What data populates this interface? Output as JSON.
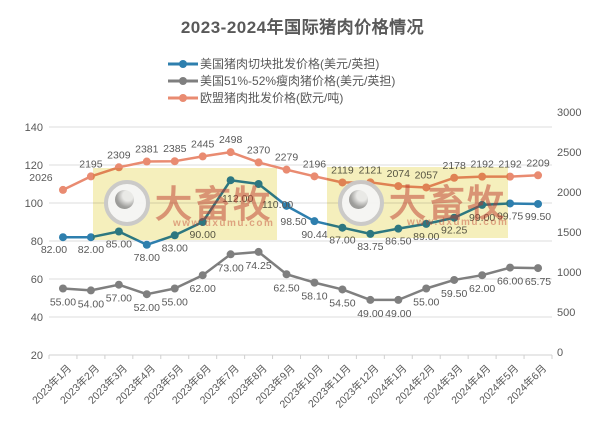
{
  "title": "2023-2024年国际猪肉价格情况",
  "legend": {
    "items": [
      {
        "label": "美国猪肉切块批发价格(美元/英担)",
        "color": "#2e7fae"
      },
      {
        "label": "美国51%-52%瘦肉猪价格(美元/英担)",
        "color": "#7f7f7f"
      },
      {
        "label": "欧盟猪肉批发价格(欧元/吨)",
        "color": "#e98b71"
      }
    ]
  },
  "watermark": {
    "brand": "大畜牧",
    "url": "www.dxumu.com"
  },
  "chart_data": {
    "type": "line",
    "title": "2023-2024年国际猪肉价格情况",
    "categories": [
      "2023年1月",
      "2023年2月",
      "2023年3月",
      "2023年4月",
      "2023年5月",
      "2023年6月",
      "2023年7月",
      "2023年8月",
      "2023年9月",
      "2023年10月",
      "2023年11月",
      "2023年12月",
      "2024年1月",
      "2024年2月",
      "2024年3月",
      "2024年4月",
      "2024年5月",
      "2024年6月"
    ],
    "series": [
      {
        "name": "美国猪肉切块批发价格(美元/英担)",
        "axis": "left",
        "color": "#2e7fae",
        "values": [
          82.0,
          82.0,
          85.0,
          78.0,
          83.0,
          90.0,
          112.0,
          110.0,
          98.5,
          90.44,
          87.0,
          83.75,
          86.5,
          89.0,
          92.25,
          99.0,
          99.75,
          99.5
        ],
        "labels": [
          "82.00",
          "82.00",
          "85.00",
          "78.00",
          "83.00",
          "90.00",
          "112.00",
          "110.00",
          "98.50",
          "90.44",
          "87.00",
          "83.75",
          "86.50",
          "89.00",
          "92.25",
          "99.00",
          "99.75",
          "99.50"
        ]
      },
      {
        "name": "美国51%-52%瘦肉猪价格(美元/英担)",
        "axis": "left",
        "color": "#7f7f7f",
        "values": [
          55.0,
          54.0,
          57.0,
          52.0,
          55.0,
          62.0,
          73.0,
          74.25,
          62.5,
          58.1,
          54.5,
          49.0,
          49.0,
          55.0,
          59.5,
          62.0,
          66.0,
          65.75
        ],
        "labels": [
          "55.00",
          "54.00",
          "57.00",
          "52.00",
          "55.00",
          "62.00",
          "73.00",
          "74.25",
          "62.50",
          "58.10",
          "54.50",
          "49.00",
          "49.00",
          "55.00",
          "59.50",
          "62.00",
          "66.00",
          "65.75"
        ]
      },
      {
        "name": "欧盟猪肉批发价格(欧元/吨)",
        "axis": "right",
        "color": "#e98b71",
        "values": [
          2026,
          2195,
          2309,
          2381,
          2385,
          2445,
          2498,
          2370,
          2279,
          2196,
          2119,
          2121,
          2074,
          2057,
          2178,
          2192,
          2192,
          2209
        ],
        "labels": [
          "2026",
          "2195",
          "2309",
          "2381",
          "2385",
          "2445",
          "2498",
          "2370",
          "2279",
          "2196",
          "2119",
          "2121",
          "2074",
          "2057",
          "2178",
          "2192",
          "2192",
          "2209"
        ]
      }
    ],
    "left_axis": {
      "min": 20,
      "max": 140,
      "step": 20,
      "ticks": [
        "140",
        "120",
        "100",
        "80",
        "60",
        "40",
        "20"
      ]
    },
    "right_axis": {
      "min": 0,
      "max": 3000,
      "step": 500,
      "ticks": [
        "3000",
        "2500",
        "2000",
        "1500",
        "1000",
        "500",
        "0"
      ]
    },
    "grid": "horizontal",
    "legend_position": "top",
    "label_color": "#595959",
    "axis_text_color": "#595959",
    "grid_color": "#dcdcdc",
    "axis_line_color": "#d0d0d0"
  }
}
